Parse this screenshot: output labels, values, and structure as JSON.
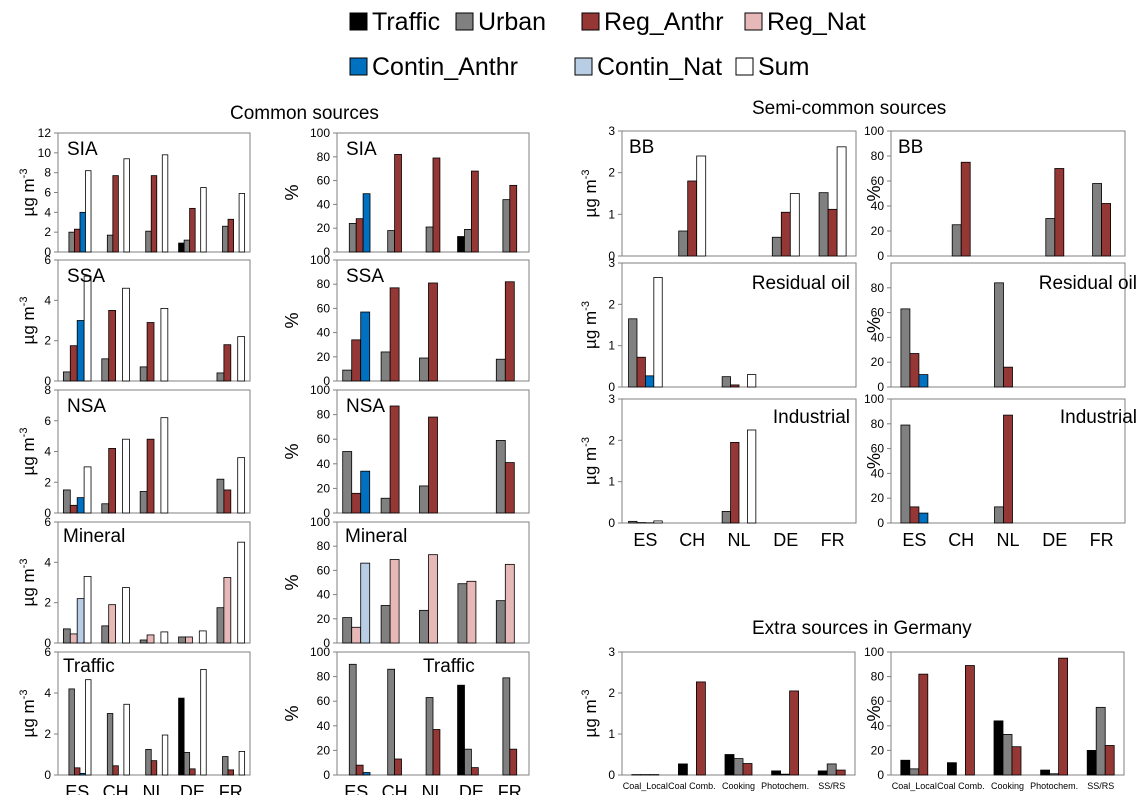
{
  "legend": {
    "items": [
      {
        "key": "traffic",
        "label": "Traffic"
      },
      {
        "key": "urban",
        "label": "Urban"
      },
      {
        "key": "reg_anthr",
        "label": "Reg_Anthr"
      },
      {
        "key": "reg_nat",
        "label": "Reg_Nat"
      },
      {
        "key": "contin_anthr",
        "label": "Contin_Anthr"
      },
      {
        "key": "contin_nat",
        "label": "Contin_Nat"
      },
      {
        "key": "sum",
        "label": "Sum"
      }
    ],
    "colors": {
      "traffic": "#000000",
      "urban": "#808080",
      "reg_anthr": "#953735",
      "reg_nat": "#e6b9b8",
      "contin_anthr": "#0070c0",
      "contin_nat": "#b9cde5",
      "sum": "#ffffff"
    }
  },
  "section_titles": {
    "common": "Common sources",
    "semi": "Semi-common sources",
    "extra": "Extra sources in Germany"
  },
  "axis_labels": {
    "mass": "µg m-3",
    "mass_base": "µg m",
    "mass_sup": "-3",
    "percent": "%"
  },
  "countries": [
    "ES",
    "CH",
    "NL",
    "DE",
    "FR"
  ],
  "extra_categories": [
    "Coal_Local",
    "Coal Comb.",
    "Cooking",
    "Photochem.",
    "SS/RS"
  ],
  "chart_data": [
    {
      "id": "sia_abs",
      "type": "bar",
      "title": "SIA",
      "ylabel": "µg m-3",
      "ylim": [
        0,
        12
      ],
      "ticks": [
        0,
        2,
        4,
        6,
        8,
        10,
        12
      ],
      "categories": [
        "ES",
        "CH",
        "NL",
        "DE",
        "FR"
      ],
      "series": [
        {
          "key": "traffic",
          "values": [
            0,
            0,
            0,
            0.9,
            0
          ]
        },
        {
          "key": "urban",
          "values": [
            2.0,
            1.7,
            2.1,
            1.2,
            2.6
          ]
        },
        {
          "key": "reg_anthr",
          "values": [
            2.3,
            7.7,
            7.7,
            4.4,
            3.3
          ]
        },
        {
          "key": "contin_anthr",
          "values": [
            4.0,
            0,
            0,
            0,
            0
          ]
        },
        {
          "key": "sum",
          "values": [
            8.2,
            9.4,
            9.8,
            6.5,
            5.9
          ]
        }
      ]
    },
    {
      "id": "sia_pct",
      "type": "bar",
      "title": "SIA",
      "ylabel": "%",
      "ylim": [
        0,
        100
      ],
      "ticks": [
        0,
        20,
        40,
        60,
        80,
        100
      ],
      "categories": [
        "ES",
        "CH",
        "NL",
        "DE",
        "FR"
      ],
      "series": [
        {
          "key": "traffic",
          "values": [
            0,
            0,
            0,
            13,
            0
          ]
        },
        {
          "key": "urban",
          "values": [
            24,
            18,
            21,
            19,
            44
          ]
        },
        {
          "key": "reg_anthr",
          "values": [
            28,
            82,
            79,
            68,
            56
          ]
        },
        {
          "key": "contin_anthr",
          "values": [
            49,
            0,
            0,
            0,
            0
          ]
        }
      ]
    },
    {
      "id": "ssa_abs",
      "type": "bar",
      "title": "SSA",
      "ylabel": "µg m-3",
      "ylim": [
        0,
        6
      ],
      "ticks": [
        0,
        2,
        4,
        6
      ],
      "categories": [
        "ES",
        "CH",
        "NL",
        "DE",
        "FR"
      ],
      "series": [
        {
          "key": "urban",
          "values": [
            0.45,
            1.1,
            0.7,
            0,
            0.4
          ]
        },
        {
          "key": "reg_anthr",
          "values": [
            1.75,
            3.5,
            2.9,
            0,
            1.8
          ]
        },
        {
          "key": "contin_anthr",
          "values": [
            3.0,
            0,
            0,
            0,
            0
          ]
        },
        {
          "key": "sum",
          "values": [
            5.2,
            4.6,
            3.6,
            0,
            2.2
          ]
        }
      ]
    },
    {
      "id": "ssa_pct",
      "type": "bar",
      "title": "SSA",
      "ylabel": "%",
      "ylim": [
        0,
        100
      ],
      "ticks": [
        0,
        20,
        40,
        60,
        80,
        100
      ],
      "categories": [
        "ES",
        "CH",
        "NL",
        "DE",
        "FR"
      ],
      "series": [
        {
          "key": "urban",
          "values": [
            9,
            24,
            19,
            0,
            18
          ]
        },
        {
          "key": "reg_anthr",
          "values": [
            34,
            77,
            81,
            0,
            82
          ]
        },
        {
          "key": "contin_anthr",
          "values": [
            57,
            0,
            0,
            0,
            0
          ]
        }
      ]
    },
    {
      "id": "nsa_abs",
      "type": "bar",
      "title": "NSA",
      "ylabel": "µg m-3",
      "ylim": [
        0,
        8
      ],
      "ticks": [
        0,
        2,
        4,
        6,
        8
      ],
      "categories": [
        "ES",
        "CH",
        "NL",
        "DE",
        "FR"
      ],
      "series": [
        {
          "key": "urban",
          "values": [
            1.5,
            0.6,
            1.4,
            0,
            2.2
          ]
        },
        {
          "key": "reg_anthr",
          "values": [
            0.5,
            4.2,
            4.8,
            0,
            1.5
          ]
        },
        {
          "key": "contin_anthr",
          "values": [
            1.0,
            0,
            0,
            0,
            0
          ]
        },
        {
          "key": "sum",
          "values": [
            3.0,
            4.8,
            6.2,
            0,
            3.6
          ]
        }
      ]
    },
    {
      "id": "nsa_pct",
      "type": "bar",
      "title": "NSA",
      "ylabel": "%",
      "ylim": [
        0,
        100
      ],
      "ticks": [
        0,
        20,
        40,
        60,
        80,
        100
      ],
      "categories": [
        "ES",
        "CH",
        "NL",
        "DE",
        "FR"
      ],
      "series": [
        {
          "key": "urban",
          "values": [
            50,
            12,
            22,
            0,
            59
          ]
        },
        {
          "key": "reg_anthr",
          "values": [
            16,
            87,
            78,
            0,
            41
          ]
        },
        {
          "key": "contin_anthr",
          "values": [
            34,
            0,
            0,
            0,
            0
          ]
        }
      ]
    },
    {
      "id": "mineral_abs",
      "type": "bar",
      "title": "Mineral",
      "ylabel": "µg m-3",
      "ylim": [
        0,
        6
      ],
      "ticks": [
        0,
        2,
        4,
        6
      ],
      "categories": [
        "ES",
        "CH",
        "NL",
        "DE",
        "FR"
      ],
      "series": [
        {
          "key": "urban",
          "values": [
            0.7,
            0.85,
            0.15,
            0.3,
            1.75
          ]
        },
        {
          "key": "reg_nat",
          "values": [
            0.45,
            1.9,
            0.4,
            0.3,
            3.25
          ]
        },
        {
          "key": "contin_nat",
          "values": [
            2.2,
            0,
            0,
            0,
            0
          ]
        },
        {
          "key": "sum",
          "values": [
            3.3,
            2.75,
            0.55,
            0.6,
            5.0
          ]
        }
      ]
    },
    {
      "id": "mineral_pct",
      "type": "bar",
      "title": "Mineral",
      "ylabel": "%",
      "ylim": [
        0,
        100
      ],
      "ticks": [
        0,
        20,
        40,
        60,
        80,
        100
      ],
      "categories": [
        "ES",
        "CH",
        "NL",
        "DE",
        "FR"
      ],
      "series": [
        {
          "key": "urban",
          "values": [
            21,
            31,
            27,
            49,
            35
          ]
        },
        {
          "key": "reg_nat",
          "values": [
            13,
            69,
            73,
            51,
            65
          ]
        },
        {
          "key": "contin_nat",
          "values": [
            66,
            0,
            0,
            0,
            0
          ]
        }
      ]
    },
    {
      "id": "traffic_abs",
      "type": "bar",
      "title": "Traffic",
      "ylabel": "µg m-3",
      "ylim": [
        0,
        6
      ],
      "ticks": [
        0,
        2,
        4,
        6
      ],
      "categories": [
        "ES",
        "CH",
        "NL",
        "DE",
        "FR"
      ],
      "series": [
        {
          "key": "traffic",
          "values": [
            0,
            0,
            0,
            3.75,
            0
          ]
        },
        {
          "key": "urban",
          "values": [
            4.2,
            3.0,
            1.25,
            1.1,
            0.9
          ]
        },
        {
          "key": "reg_anthr",
          "values": [
            0.35,
            0.45,
            0.7,
            0.3,
            0.25
          ]
        },
        {
          "key": "contin_anthr",
          "values": [
            0.08,
            0,
            0,
            0,
            0
          ]
        },
        {
          "key": "sum",
          "values": [
            4.65,
            3.45,
            1.95,
            5.15,
            1.15
          ]
        }
      ]
    },
    {
      "id": "traffic_pct",
      "type": "bar",
      "title": "Traffic",
      "ylabel": "%",
      "ylim": [
        0,
        100
      ],
      "ticks": [
        0,
        20,
        40,
        60,
        80,
        100
      ],
      "categories": [
        "ES",
        "CH",
        "NL",
        "DE",
        "FR"
      ],
      "series": [
        {
          "key": "traffic",
          "values": [
            0,
            0,
            0,
            73,
            0
          ]
        },
        {
          "key": "urban",
          "values": [
            90,
            86,
            63,
            21,
            79
          ]
        },
        {
          "key": "reg_anthr",
          "values": [
            8,
            13,
            37,
            6,
            21
          ]
        },
        {
          "key": "contin_anthr",
          "values": [
            2,
            0,
            0,
            0,
            0
          ]
        }
      ]
    },
    {
      "id": "bb_abs",
      "type": "bar",
      "title": "BB",
      "ylabel": "µg m-3",
      "ylim": [
        0,
        3
      ],
      "ticks": [
        0,
        1,
        2,
        3
      ],
      "categories": [
        "ES",
        "CH",
        "NL",
        "DE",
        "FR"
      ],
      "series": [
        {
          "key": "urban",
          "values": [
            0,
            0.6,
            0,
            0.45,
            1.52
          ]
        },
        {
          "key": "reg_anthr",
          "values": [
            0,
            1.8,
            0,
            1.05,
            1.12
          ]
        },
        {
          "key": "sum",
          "values": [
            0,
            2.4,
            0,
            1.5,
            2.62
          ]
        }
      ]
    },
    {
      "id": "bb_pct",
      "type": "bar",
      "title": "BB",
      "ylabel": "%",
      "ylim": [
        0,
        100
      ],
      "ticks": [
        0,
        20,
        40,
        60,
        80,
        100
      ],
      "categories": [
        "ES",
        "CH",
        "NL",
        "DE",
        "FR"
      ],
      "series": [
        {
          "key": "urban",
          "values": [
            0,
            25,
            0,
            30,
            58
          ]
        },
        {
          "key": "reg_anthr",
          "values": [
            0,
            75,
            0,
            70,
            42
          ]
        }
      ]
    },
    {
      "id": "resoil_abs",
      "type": "bar",
      "title": "Residual oil",
      "ylabel": "µg m-3",
      "ylim": [
        0,
        3
      ],
      "ticks": [
        0,
        1,
        2,
        3
      ],
      "categories": [
        "ES",
        "CH",
        "NL",
        "DE",
        "FR"
      ],
      "series": [
        {
          "key": "urban",
          "values": [
            1.65,
            0,
            0.25,
            0,
            0
          ]
        },
        {
          "key": "reg_anthr",
          "values": [
            0.72,
            0,
            0.05,
            0,
            0
          ]
        },
        {
          "key": "contin_anthr",
          "values": [
            0.27,
            0,
            0,
            0,
            0
          ]
        },
        {
          "key": "sum",
          "values": [
            2.65,
            0,
            0.3,
            0,
            0
          ]
        }
      ]
    },
    {
      "id": "resoil_pct",
      "type": "bar",
      "title": "Residual oil",
      "ylabel": "%",
      "ylim": [
        0,
        100
      ],
      "ticks": [
        0,
        20,
        40,
        60,
        80
      ],
      "categories": [
        "ES",
        "CH",
        "NL",
        "DE",
        "FR"
      ],
      "series": [
        {
          "key": "urban",
          "values": [
            63,
            0,
            84,
            0,
            0
          ]
        },
        {
          "key": "reg_anthr",
          "values": [
            27,
            0,
            16,
            0,
            0
          ]
        },
        {
          "key": "contin_anthr",
          "values": [
            10,
            0,
            0,
            0,
            0
          ]
        }
      ]
    },
    {
      "id": "ind_abs",
      "type": "bar",
      "title": "Industrial",
      "ylabel": "µg m-3",
      "ylim": [
        0,
        3
      ],
      "ticks": [
        0,
        1,
        2,
        3
      ],
      "categories": [
        "ES",
        "CH",
        "NL",
        "DE",
        "FR"
      ],
      "series": [
        {
          "key": "urban",
          "values": [
            0.04,
            0,
            0.28,
            0,
            0
          ]
        },
        {
          "key": "reg_anthr",
          "values": [
            0.01,
            0,
            1.95,
            0,
            0
          ]
        },
        {
          "key": "contin_anthr",
          "values": [
            0.005,
            0,
            0,
            0,
            0
          ]
        },
        {
          "key": "sum",
          "values": [
            0.05,
            0,
            2.25,
            0,
            0
          ]
        }
      ]
    },
    {
      "id": "ind_pct",
      "type": "bar",
      "title": "Industrial",
      "ylabel": "%",
      "ylim": [
        0,
        100
      ],
      "ticks": [
        0,
        20,
        40,
        60,
        80,
        100
      ],
      "categories": [
        "ES",
        "CH",
        "NL",
        "DE",
        "FR"
      ],
      "series": [
        {
          "key": "urban",
          "values": [
            79,
            0,
            13,
            0,
            0
          ]
        },
        {
          "key": "reg_anthr",
          "values": [
            13,
            0,
            87,
            0,
            0
          ]
        },
        {
          "key": "contin_anthr",
          "values": [
            8,
            0,
            0,
            0,
            0
          ]
        }
      ]
    },
    {
      "id": "de_abs",
      "type": "bar",
      "title": "",
      "ylabel": "µg m-3",
      "ylim": [
        0,
        3
      ],
      "ticks": [
        0,
        1,
        2,
        3
      ],
      "categories": [
        "Coal_Local",
        "Coal Comb.",
        "Cooking",
        "Photochem.",
        "SS/RS"
      ],
      "series": [
        {
          "key": "traffic",
          "values": [
            0.01,
            0.27,
            0.5,
            0.1,
            0.1
          ]
        },
        {
          "key": "urban",
          "values": [
            0.01,
            0,
            0.4,
            0.02,
            0.27
          ]
        },
        {
          "key": "reg_anthr",
          "values": [
            0.01,
            2.27,
            0.28,
            2.05,
            0.12
          ]
        }
      ]
    },
    {
      "id": "de_pct",
      "type": "bar",
      "title": "",
      "ylabel": "%",
      "ylim": [
        0,
        100
      ],
      "ticks": [
        0,
        20,
        40,
        60,
        80,
        100
      ],
      "categories": [
        "Coal_Local",
        "Coal Comb.",
        "Cooking",
        "Photochem.",
        "SS/RS"
      ],
      "series": [
        {
          "key": "traffic",
          "values": [
            12,
            10,
            44,
            4,
            20
          ]
        },
        {
          "key": "urban",
          "values": [
            5,
            0,
            33,
            1,
            55
          ]
        },
        {
          "key": "reg_anthr",
          "values": [
            82,
            89,
            23,
            95,
            24
          ]
        }
      ]
    }
  ]
}
